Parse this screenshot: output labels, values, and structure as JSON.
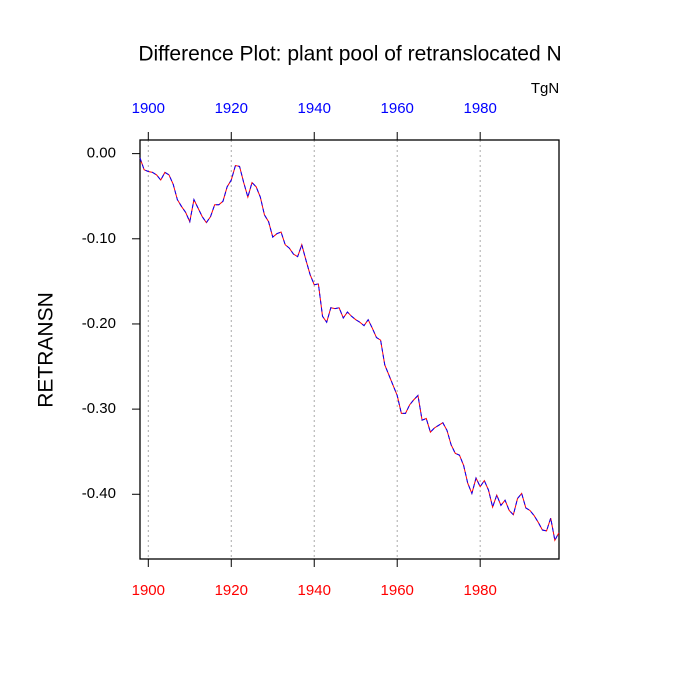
{
  "chart_data": {
    "type": "line",
    "title": "Difference Plot: plant pool of retranslocated N",
    "units": "TgN",
    "y_label": "RETRANSN",
    "x": [
      1898,
      1899,
      1900,
      1901,
      1902,
      1903,
      1904,
      1905,
      1906,
      1907,
      1908,
      1909,
      1910,
      1911,
      1912,
      1913,
      1914,
      1915,
      1916,
      1917,
      1918,
      1919,
      1920,
      1921,
      1922,
      1923,
      1924,
      1925,
      1926,
      1927,
      1928,
      1929,
      1930,
      1931,
      1932,
      1933,
      1934,
      1935,
      1936,
      1937,
      1938,
      1939,
      1940,
      1941,
      1942,
      1943,
      1944,
      1945,
      1946,
      1947,
      1948,
      1949,
      1950,
      1951,
      1952,
      1953,
      1954,
      1955,
      1956,
      1957,
      1958,
      1959,
      1960,
      1961,
      1962,
      1963,
      1964,
      1965,
      1966,
      1967,
      1968,
      1969,
      1970,
      1971,
      1972,
      1973,
      1974,
      1975,
      1976,
      1977,
      1978,
      1979,
      1980,
      1981,
      1982,
      1983,
      1984,
      1985,
      1986,
      1987,
      1988,
      1989,
      1990,
      1991,
      1992,
      1993,
      1994,
      1995,
      1996,
      1997,
      1998,
      1999
    ],
    "series": [
      {
        "color": "#ff0000",
        "dash_color": "#0000ff",
        "values": [
          -0.005,
          -0.019,
          -0.021,
          -0.022,
          -0.025,
          -0.031,
          -0.022,
          -0.025,
          -0.036,
          -0.054,
          -0.062,
          -0.069,
          -0.08,
          -0.054,
          -0.064,
          -0.074,
          -0.081,
          -0.074,
          -0.06,
          -0.06,
          -0.056,
          -0.039,
          -0.031,
          -0.014,
          -0.015,
          -0.034,
          -0.051,
          -0.034,
          -0.039,
          -0.051,
          -0.072,
          -0.08,
          -0.098,
          -0.094,
          -0.092,
          -0.107,
          -0.111,
          -0.118,
          -0.121,
          -0.107,
          -0.125,
          -0.142,
          -0.154,
          -0.153,
          -0.191,
          -0.198,
          -0.181,
          -0.182,
          -0.181,
          -0.193,
          -0.186,
          -0.191,
          -0.195,
          -0.198,
          -0.202,
          -0.195,
          -0.205,
          -0.216,
          -0.219,
          -0.248,
          -0.26,
          -0.272,
          -0.284,
          -0.305,
          -0.305,
          -0.295,
          -0.289,
          -0.284,
          -0.313,
          -0.311,
          -0.327,
          -0.322,
          -0.319,
          -0.316,
          -0.325,
          -0.342,
          -0.352,
          -0.354,
          -0.366,
          -0.387,
          -0.399,
          -0.381,
          -0.391,
          -0.384,
          -0.395,
          -0.415,
          -0.401,
          -0.413,
          -0.407,
          -0.419,
          -0.424,
          -0.405,
          -0.399,
          -0.416,
          -0.419,
          -0.425,
          -0.433,
          -0.442,
          -0.443,
          -0.428,
          -0.454,
          -0.445
        ]
      }
    ],
    "xlim": [
      1898,
      1999
    ],
    "ylim": [
      -0.476,
      0.016
    ],
    "xticks": [
      1900,
      1920,
      1940,
      1960,
      1980
    ],
    "top_xticks": [
      1900,
      1920,
      1940,
      1960,
      1980
    ],
    "xtick_color": "#ff0000",
    "top_xtick_color": "#0000ff",
    "yticks": [
      {
        "value": 0,
        "label": "0.00"
      },
      {
        "value": -0.1,
        "label": "-0.10"
      },
      {
        "value": -0.2,
        "label": "-0.20"
      },
      {
        "value": -0.3,
        "label": "-0.30"
      },
      {
        "value": -0.4,
        "label": "-0.40"
      }
    ],
    "grid": true
  }
}
